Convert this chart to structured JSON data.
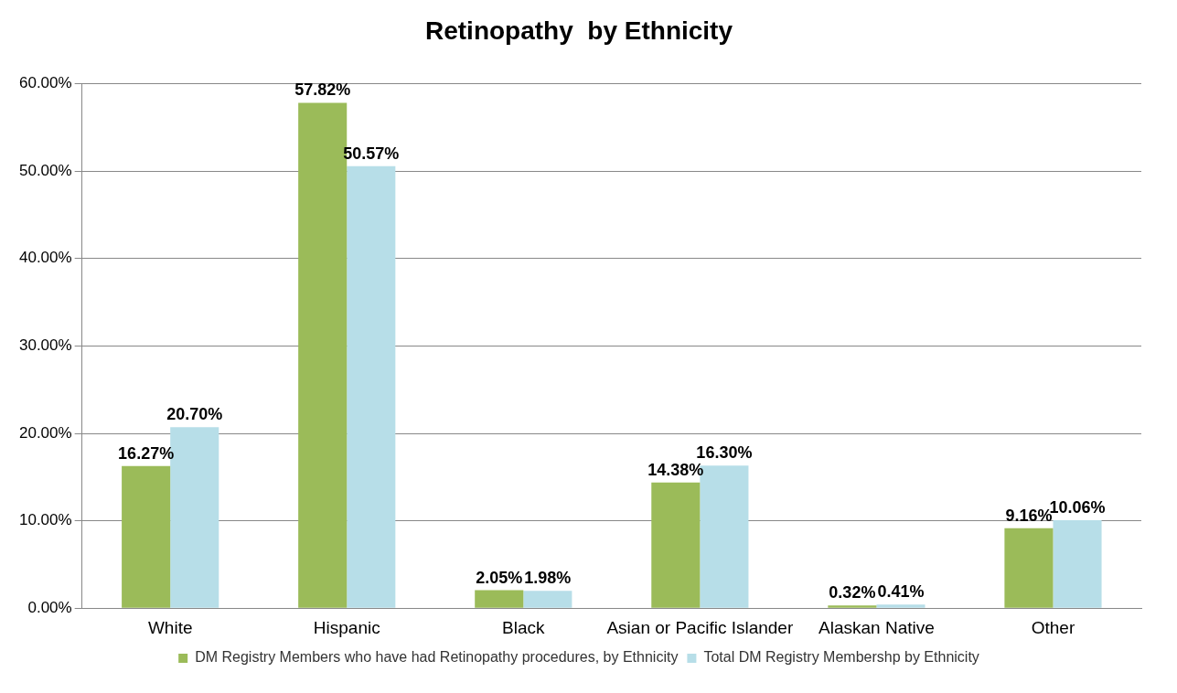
{
  "chart_data": {
    "type": "bar",
    "title": "Retinopathy  by Ethnicity",
    "categories": [
      "White",
      "Hispanic",
      "Black",
      "Asian or Pacific Islander",
      "Alaskan Native",
      "Other"
    ],
    "series": [
      {
        "name": "DM Registry Members who have had Retinopathy procedures, by Ethnicity",
        "color": "#9bbb59",
        "values": [
          16.27,
          57.82,
          2.05,
          14.38,
          0.32,
          9.16
        ],
        "value_labels": [
          "16.27%",
          "57.82%",
          "2.05%",
          "14.38%",
          "0.32%",
          "9.16%"
        ]
      },
      {
        "name": "Total DM Registry Membershp by Ethnicity",
        "color": "#b7dee8",
        "values": [
          20.7,
          50.57,
          1.98,
          16.3,
          0.41,
          10.06
        ],
        "value_labels": [
          "20.70%",
          "50.57%",
          "1.98%",
          "16.30%",
          "0.41%",
          "10.06%"
        ]
      }
    ],
    "ylim": [
      0,
      60
    ],
    "yticks": [
      {
        "value": 0,
        "label": "0.00%"
      },
      {
        "value": 10,
        "label": "10.00%"
      },
      {
        "value": 20,
        "label": "20.00%"
      },
      {
        "value": 30,
        "label": "30.00%"
      },
      {
        "value": 40,
        "label": "40.00%"
      },
      {
        "value": 50,
        "label": "50.00%"
      },
      {
        "value": 60,
        "label": "60.00%"
      }
    ],
    "grid": "y",
    "legend": "bottom"
  }
}
